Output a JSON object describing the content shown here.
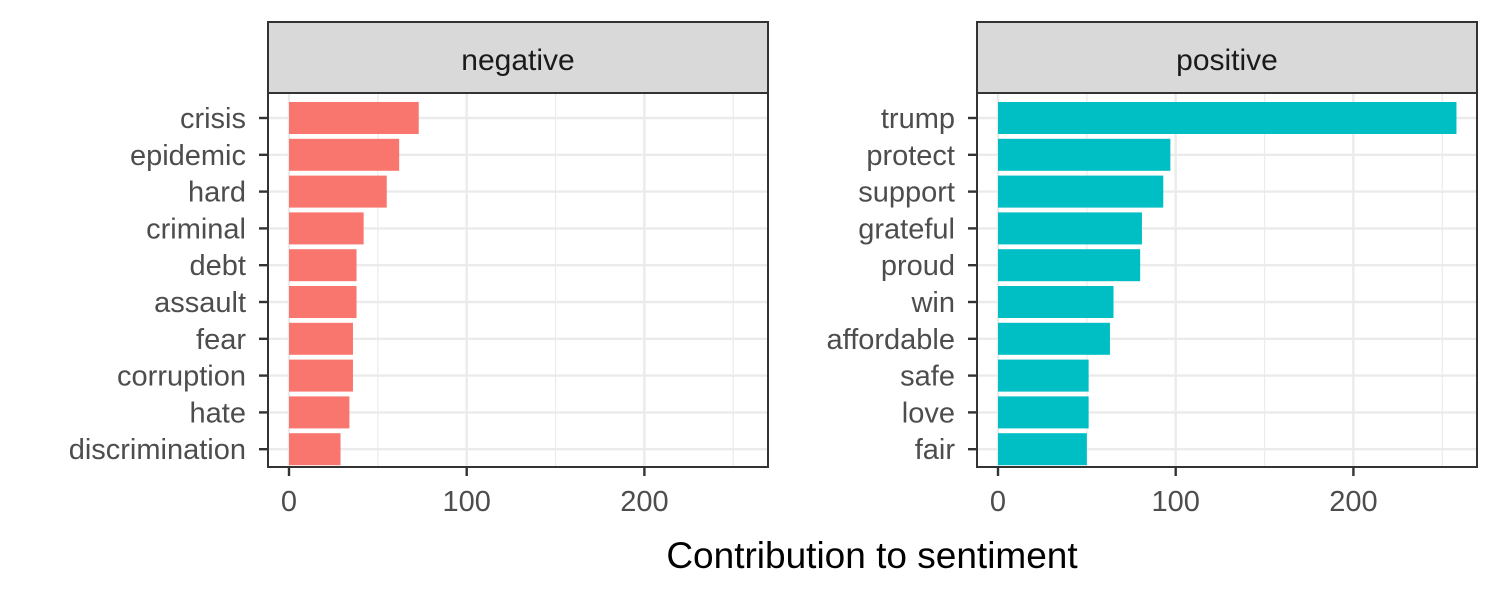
{
  "chart_data": {
    "type": "bar",
    "orientation": "horizontal",
    "xlabel": "Contribution to sentiment",
    "ylabel": "",
    "xlim": [
      0,
      270
    ],
    "x_ticks": [
      0,
      100,
      200
    ],
    "grid": true,
    "legend": "none",
    "panels": [
      {
        "name": "negative",
        "color": "#F8766D",
        "categories": [
          "crisis",
          "epidemic",
          "hard",
          "criminal",
          "debt",
          "assault",
          "fear",
          "corruption",
          "hate",
          "discrimination"
        ],
        "values": [
          73,
          62,
          55,
          42,
          38,
          38,
          36,
          36,
          34,
          29
        ]
      },
      {
        "name": "positive",
        "color": "#00BFC4",
        "categories": [
          "trump",
          "protect",
          "support",
          "grateful",
          "proud",
          "win",
          "affordable",
          "safe",
          "love",
          "fair"
        ],
        "values": [
          258,
          97,
          93,
          81,
          80,
          65,
          63,
          51,
          51,
          50
        ]
      }
    ]
  }
}
